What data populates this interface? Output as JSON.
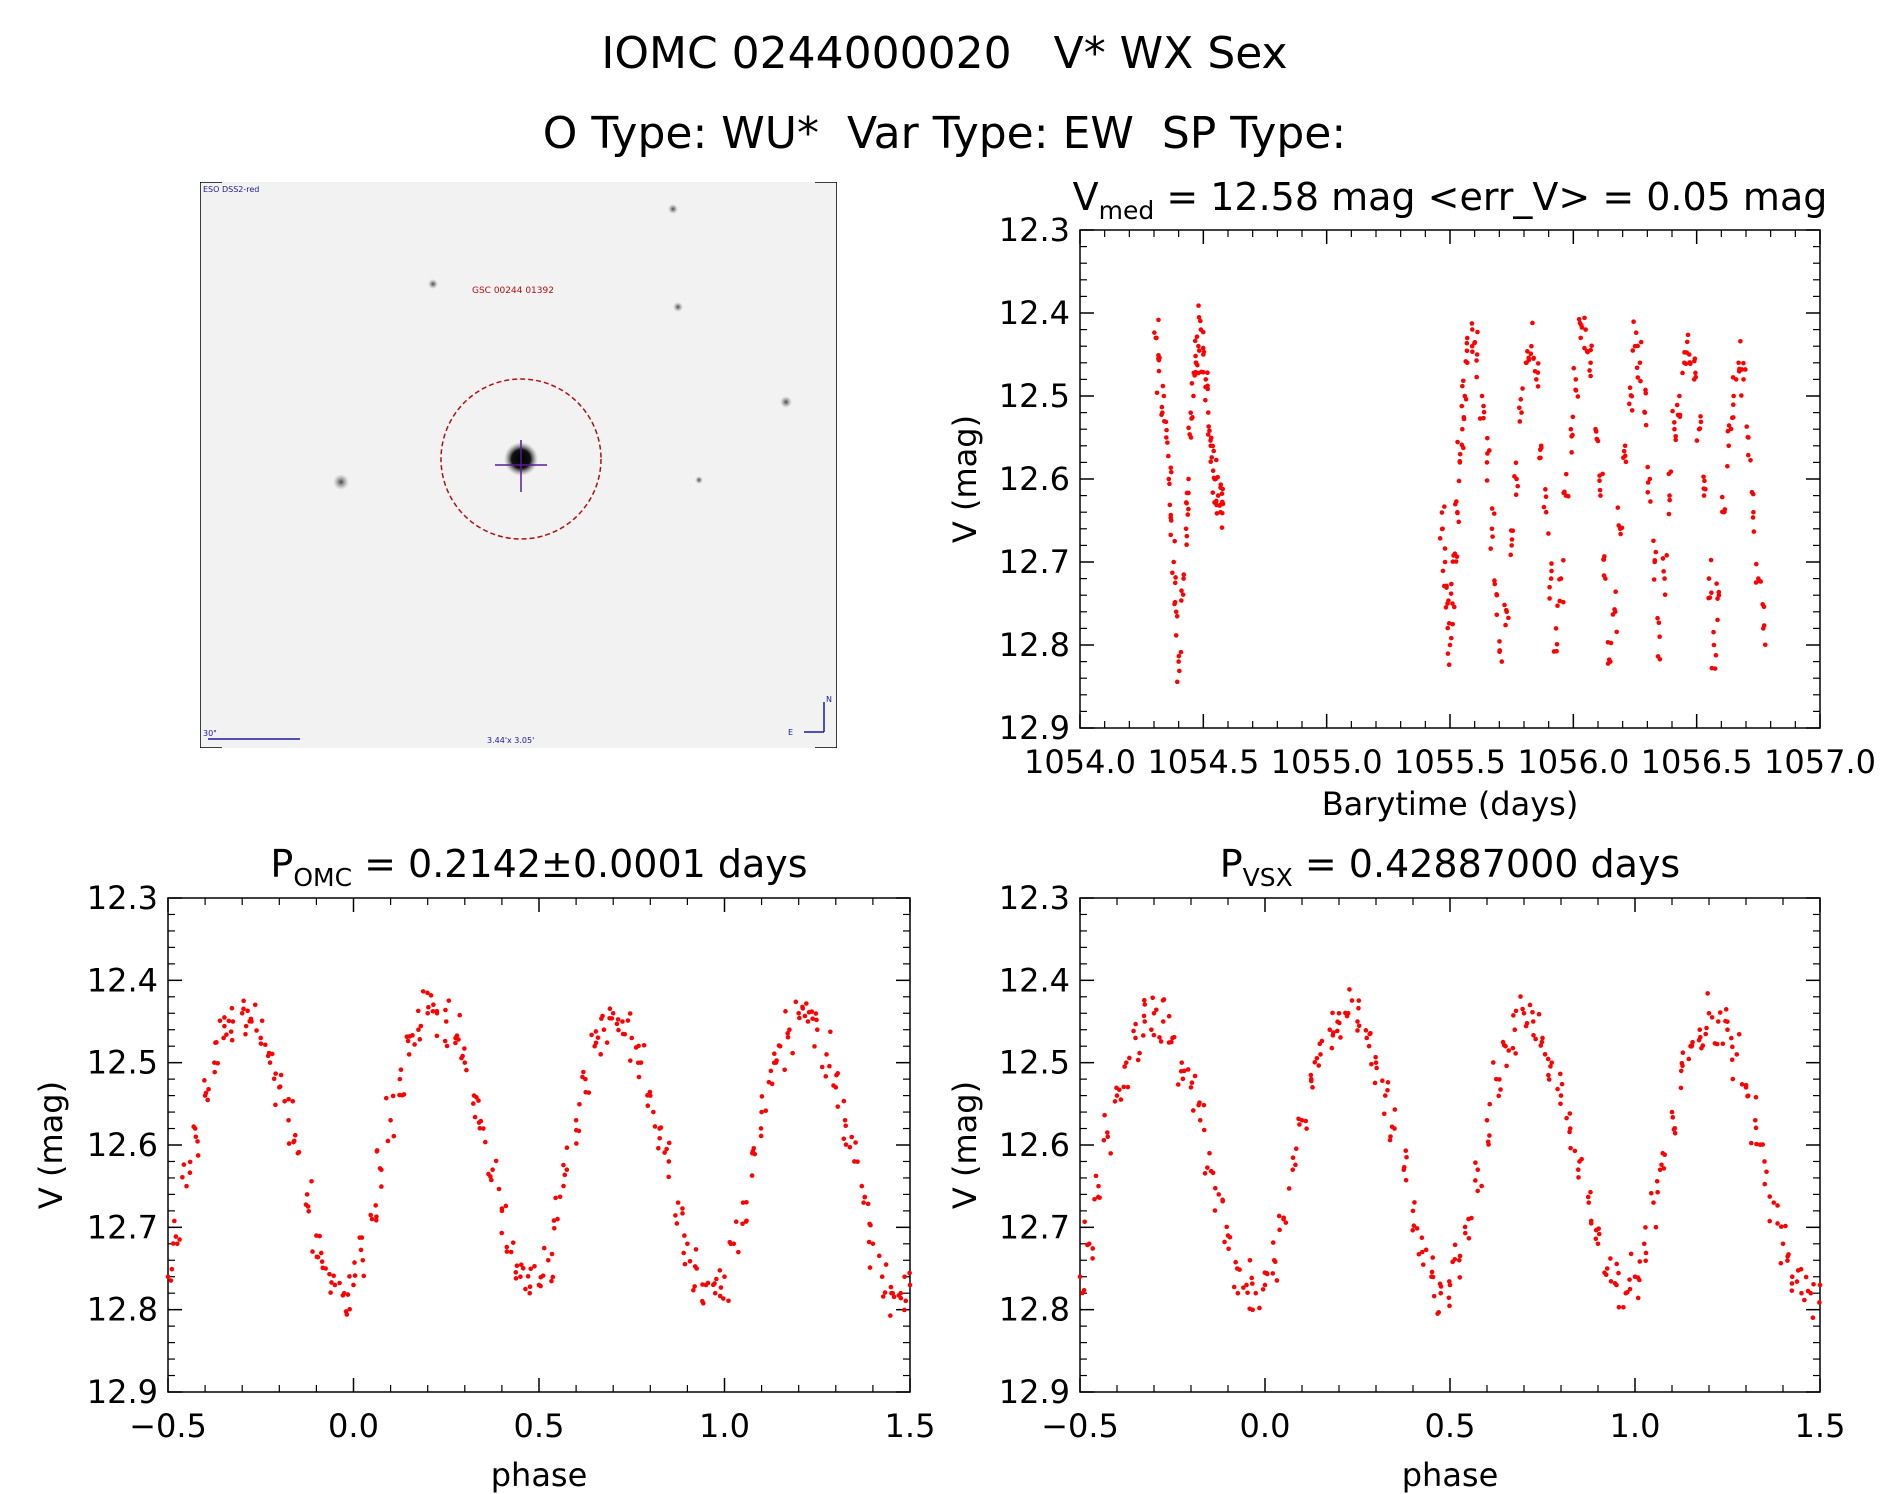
{
  "header": {
    "line1_left": "IOMC 0244000020",
    "line1_right": "V* WX Sex",
    "line2_otype": "O Type: WU*",
    "line2_vartype": "Var Type: EW",
    "line2_sptype": "SP Type:"
  },
  "finder_image": {
    "survey_label": "ESO DSS2-red",
    "star_label": "GSC 00244 01392",
    "scale_label": "30\"",
    "fov_label": "3.44'x 3.05'",
    "compass_north": "N",
    "compass_east": "E",
    "colors": {
      "background": "#f2f2f2",
      "circle": "#b01010",
      "crosshair": "#5a1a9a",
      "annotation": "#1a1a9a"
    }
  },
  "chart_data": [
    {
      "type": "scatter",
      "id": "lightcurve",
      "title_main": "V",
      "title_sub": "med",
      "title_rest": " = 12.58 mag <err_V> = 0.05 mag",
      "xlabel": "Barytime (days)",
      "ylabel": "V (mag)",
      "xlim": [
        1054.0,
        1057.0
      ],
      "ylim": [
        12.9,
        12.3
      ],
      "xticks": [
        "1054.0",
        "1054.5",
        "1055.0",
        "1055.5",
        "1056.0",
        "1056.5",
        "1057.0"
      ],
      "yticks": [
        "12.3",
        "12.4",
        "12.5",
        "12.6",
        "12.7",
        "12.8",
        "12.9"
      ],
      "series": [
        {
          "color": "#ff0000",
          "x": [
            1054.31,
            1054.32,
            1054.34,
            1054.35,
            1054.36,
            1054.37,
            1054.38,
            1054.39,
            1054.4,
            1054.42,
            1054.43,
            1054.44,
            1054.45,
            1054.46,
            1054.47,
            1054.48,
            1054.49,
            1054.5,
            1054.51,
            1054.52,
            1054.53,
            1054.54,
            1054.55,
            1054.56,
            1054.57,
            1054.58,
            1055.47,
            1055.48,
            1055.49,
            1055.5,
            1055.51,
            1055.52,
            1055.53,
            1055.54,
            1055.55,
            1055.56,
            1055.57,
            1055.59,
            1055.61,
            1055.63,
            1055.65,
            1055.67,
            1055.69,
            1055.71,
            1055.73,
            1055.75,
            1055.77,
            1055.79,
            1055.81,
            1055.83,
            1055.85,
            1055.87,
            1055.89,
            1055.91,
            1055.93,
            1055.95,
            1055.97,
            1055.99,
            1056.01,
            1056.03,
            1056.05,
            1056.07,
            1056.09,
            1056.11,
            1056.13,
            1056.15,
            1056.17,
            1056.19,
            1056.21,
            1056.23,
            1056.25,
            1056.27,
            1056.29,
            1056.31,
            1056.33,
            1056.35,
            1056.37,
            1056.39,
            1056.41,
            1056.43,
            1056.45,
            1056.47,
            1056.49,
            1056.51,
            1056.53,
            1056.55,
            1056.57,
            1056.59,
            1056.61,
            1056.63,
            1056.65,
            1056.67,
            1056.69,
            1056.71,
            1056.73,
            1056.75,
            1056.77
          ],
          "y": [
            12.43,
            12.47,
            12.5,
            12.55,
            12.6,
            12.65,
            12.7,
            12.76,
            12.82,
            12.72,
            12.66,
            12.6,
            12.55,
            12.5,
            12.46,
            12.44,
            12.42,
            12.45,
            12.48,
            12.52,
            12.56,
            12.59,
            12.6,
            12.62,
            12.64,
            12.63,
            12.66,
            12.7,
            12.75,
            12.8,
            12.75,
            12.69,
            12.64,
            12.58,
            12.54,
            12.5,
            12.46,
            12.44,
            12.45,
            12.5,
            12.58,
            12.66,
            12.74,
            12.82,
            12.76,
            12.68,
            12.6,
            12.52,
            12.46,
            12.44,
            12.48,
            12.56,
            12.64,
            12.72,
            12.78,
            12.72,
            12.62,
            12.54,
            12.48,
            12.43,
            12.42,
            12.46,
            12.54,
            12.62,
            12.72,
            12.82,
            12.76,
            12.66,
            12.56,
            12.49,
            12.44,
            12.46,
            12.52,
            12.6,
            12.7,
            12.79,
            12.72,
            12.62,
            12.54,
            12.5,
            12.46,
            12.45,
            12.48,
            12.54,
            12.62,
            12.72,
            12.8,
            12.74,
            12.64,
            12.56,
            12.5,
            12.46,
            12.48,
            12.55,
            12.64,
            12.72,
            12.78
          ]
        }
      ]
    },
    {
      "type": "scatter",
      "id": "phase-omc",
      "title_main": "P",
      "title_sub": "OMC",
      "title_rest": " = 0.2142±0.0001 days",
      "xlabel": "phase",
      "ylabel": "V (mag)",
      "xlim": [
        -0.5,
        1.5
      ],
      "ylim": [
        12.9,
        12.3
      ],
      "xticks": [
        "−0.5",
        "0.0",
        "0.5",
        "1.0",
        "1.5"
      ],
      "yticks": [
        "12.3",
        "12.4",
        "12.5",
        "12.6",
        "12.7",
        "12.8",
        "12.9"
      ],
      "series": [
        {
          "color": "#ff0000",
          "x": [
            -0.5,
            -0.475,
            -0.45,
            -0.425,
            -0.4,
            -0.375,
            -0.35,
            -0.325,
            -0.3,
            -0.275,
            -0.25,
            -0.225,
            -0.2,
            -0.175,
            -0.15,
            -0.125,
            -0.1,
            -0.075,
            -0.05,
            -0.025,
            0.0,
            0.025,
            0.05,
            0.075,
            0.1,
            0.125,
            0.15,
            0.175,
            0.2,
            0.225,
            0.25,
            0.275,
            0.3,
            0.325,
            0.35,
            0.375,
            0.4,
            0.425,
            0.45,
            0.475,
            0.5,
            0.525,
            0.55,
            0.575,
            0.6,
            0.625,
            0.65,
            0.675,
            0.7,
            0.725,
            0.75,
            0.775,
            0.8,
            0.825,
            0.85,
            0.875,
            0.9,
            0.925,
            0.95,
            0.975,
            1.0,
            1.025,
            1.05,
            1.075,
            1.1,
            1.125,
            1.15,
            1.175,
            1.2,
            1.225,
            1.25,
            1.275,
            1.3,
            1.325,
            1.35,
            1.375,
            1.4,
            1.425,
            1.45,
            1.475,
            1.5
          ],
          "y": [
            12.76,
            12.72,
            12.65,
            12.59,
            12.54,
            12.5,
            12.47,
            12.45,
            12.44,
            12.45,
            12.47,
            12.5,
            12.53,
            12.57,
            12.61,
            12.66,
            12.71,
            12.75,
            12.77,
            12.78,
            12.77,
            12.74,
            12.69,
            12.63,
            12.57,
            12.52,
            12.49,
            12.46,
            12.44,
            12.44,
            12.45,
            12.47,
            12.5,
            12.54,
            12.58,
            12.63,
            12.68,
            12.73,
            12.76,
            12.78,
            12.77,
            12.74,
            12.69,
            12.63,
            12.57,
            12.52,
            12.48,
            12.46,
            12.44,
            12.45,
            12.47,
            12.5,
            12.54,
            12.58,
            12.62,
            12.67,
            12.72,
            12.75,
            12.77,
            12.78,
            12.76,
            12.72,
            12.67,
            12.61,
            12.56,
            12.51,
            12.48,
            12.46,
            12.44,
            12.45,
            12.46,
            12.49,
            12.53,
            12.57,
            12.62,
            12.67,
            12.72,
            12.76,
            12.78,
            12.78,
            12.77
          ]
        }
      ]
    },
    {
      "type": "scatter",
      "id": "phase-vsx",
      "title_main": "P",
      "title_sub": "VSX",
      "title_rest": " = 0.42887000 days",
      "xlabel": "phase",
      "ylabel": "V (mag)",
      "xlim": [
        -0.5,
        1.5
      ],
      "ylim": [
        12.9,
        12.3
      ],
      "xticks": [
        "−0.5",
        "0.0",
        "0.5",
        "1.0",
        "1.5"
      ],
      "yticks": [
        "12.3",
        "12.4",
        "12.5",
        "12.6",
        "12.7",
        "12.8",
        "12.9"
      ],
      "series": [
        {
          "color": "#ff0000",
          "x": [
            -0.5,
            -0.475,
            -0.45,
            -0.425,
            -0.4,
            -0.375,
            -0.35,
            -0.325,
            -0.3,
            -0.275,
            -0.25,
            -0.225,
            -0.2,
            -0.175,
            -0.15,
            -0.125,
            -0.1,
            -0.075,
            -0.05,
            -0.025,
            0.0,
            0.025,
            0.05,
            0.075,
            0.1,
            0.125,
            0.15,
            0.175,
            0.2,
            0.225,
            0.25,
            0.275,
            0.3,
            0.325,
            0.35,
            0.375,
            0.4,
            0.425,
            0.45,
            0.475,
            0.5,
            0.525,
            0.55,
            0.575,
            0.6,
            0.625,
            0.65,
            0.675,
            0.7,
            0.725,
            0.75,
            0.775,
            0.8,
            0.825,
            0.85,
            0.875,
            0.9,
            0.925,
            0.95,
            0.975,
            1.0,
            1.025,
            1.05,
            1.075,
            1.1,
            1.125,
            1.15,
            1.175,
            1.2,
            1.225,
            1.25,
            1.275,
            1.3,
            1.325,
            1.35,
            1.375,
            1.4,
            1.425,
            1.45,
            1.475,
            1.5
          ],
          "y": [
            12.76,
            12.72,
            12.65,
            12.59,
            12.54,
            12.5,
            12.47,
            12.45,
            12.44,
            12.45,
            12.47,
            12.5,
            12.53,
            12.57,
            12.61,
            12.66,
            12.71,
            12.75,
            12.77,
            12.78,
            12.77,
            12.74,
            12.69,
            12.63,
            12.57,
            12.52,
            12.49,
            12.46,
            12.44,
            12.44,
            12.45,
            12.47,
            12.5,
            12.54,
            12.58,
            12.63,
            12.68,
            12.73,
            12.76,
            12.78,
            12.77,
            12.74,
            12.69,
            12.63,
            12.57,
            12.52,
            12.48,
            12.46,
            12.44,
            12.45,
            12.47,
            12.5,
            12.54,
            12.58,
            12.62,
            12.67,
            12.72,
            12.75,
            12.77,
            12.78,
            12.76,
            12.72,
            12.67,
            12.61,
            12.56,
            12.51,
            12.48,
            12.46,
            12.44,
            12.45,
            12.46,
            12.49,
            12.53,
            12.57,
            12.62,
            12.67,
            12.72,
            12.76,
            12.78,
            12.78,
            12.77
          ]
        }
      ]
    }
  ]
}
